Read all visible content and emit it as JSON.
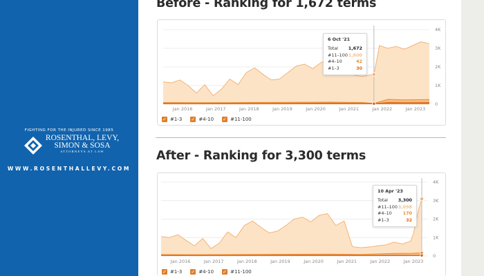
{
  "sidebar": {
    "tagline": "FIGHTING FOR THE INJURED SINCE 1985",
    "firm_line1": "ROSENTHAL, LEVY,",
    "firm_line2": "SIMON & SOSA",
    "firm_line3": "ATTORNEYS AT LAW",
    "website": "WWW.ROSENTHALLEVY.COM",
    "logo_icon": "diamond-logo-icon"
  },
  "colors": {
    "sidebar_blue": "#1163ad",
    "area_light": "#fde3c6",
    "line_light": "#f3b277",
    "series_mid": "#ee8a2c",
    "series_dark": "#d9681e"
  },
  "chart_data": [
    {
      "type": "area",
      "title": "Before - Ranking for 1,672 terms",
      "x_ticks": [
        "Jan 2016",
        "Jan 2017",
        "Jan 2018",
        "Jan 2019",
        "Jan 2020",
        "Jan 2021",
        "Jan 2022",
        "Jan 2023"
      ],
      "y_ticks": [
        "0",
        "1K",
        "2K",
        "3K",
        "4K"
      ],
      "ylim": [
        0,
        4000
      ],
      "xlim": [
        "2015-06",
        "2023-06"
      ],
      "legend": [
        "#1-3",
        "#4-10",
        "#11-100"
      ],
      "legend_placement": "bottom-left",
      "series": [
        {
          "name": "#11-100",
          "x": [
            "2015-06",
            "2015-09",
            "2015-12",
            "2016-03",
            "2016-06",
            "2016-09",
            "2016-12",
            "2017-03",
            "2017-06",
            "2017-09",
            "2017-12",
            "2018-03",
            "2018-06",
            "2018-09",
            "2018-12",
            "2019-03",
            "2019-06",
            "2019-09",
            "2019-12",
            "2020-03",
            "2020-06",
            "2020-09",
            "2020-12",
            "2021-03",
            "2021-06",
            "2021-10",
            "2021-12",
            "2022-03",
            "2022-06",
            "2022-09",
            "2022-12",
            "2023-03",
            "2023-06"
          ],
          "values": [
            1200,
            1150,
            1300,
            1000,
            600,
            1050,
            450,
            800,
            1350,
            1050,
            1700,
            1950,
            1600,
            1300,
            1350,
            1700,
            2050,
            2150,
            1900,
            2250,
            2350,
            1700,
            1950,
            1550,
            1500,
            1600,
            3150,
            3000,
            3100,
            2950,
            3150,
            3350,
            3250
          ]
        },
        {
          "name": "#4-10",
          "x": [
            "2015-06",
            "2016-06",
            "2017-06",
            "2018-06",
            "2019-06",
            "2020-06",
            "2021-06",
            "2021-10",
            "2022-03",
            "2022-09",
            "2023-06"
          ],
          "values": [
            90,
            80,
            85,
            95,
            100,
            110,
            90,
            42,
            260,
            230,
            250
          ]
        },
        {
          "name": "#1-3",
          "x": [
            "2015-06",
            "2016-06",
            "2017-06",
            "2018-06",
            "2019-06",
            "2020-06",
            "2021-06",
            "2021-10",
            "2022-03",
            "2022-09",
            "2023-06"
          ],
          "values": [
            40,
            35,
            40,
            45,
            50,
            55,
            45,
            30,
            90,
            80,
            85
          ]
        }
      ],
      "tooltip": {
        "date": "6 Oct '21",
        "rows": [
          {
            "label": "Total",
            "value": "1,672"
          },
          {
            "label": "#11–100",
            "value": "1,600"
          },
          {
            "label": "#4–10",
            "value": "42"
          },
          {
            "label": "#1–3",
            "value": "30"
          }
        ]
      }
    },
    {
      "type": "area",
      "title": "After - Ranking for 3,300 terms",
      "x_ticks": [
        "Jan 2016",
        "Jan 2017",
        "Jan 2018",
        "Jan 2019",
        "Jan 2020",
        "Jan 2021",
        "Jan 2022",
        "Jan 2023"
      ],
      "y_ticks": [
        "0",
        "1K",
        "2K",
        "3K",
        "4K"
      ],
      "ylim": [
        0,
        4000
      ],
      "xlim": [
        "2015-06",
        "2023-06"
      ],
      "legend": [
        "#1-3",
        "#4-10",
        "#11-100"
      ],
      "legend_placement": "bottom-left",
      "series": [
        {
          "name": "#11-100",
          "x": [
            "2015-06",
            "2015-09",
            "2015-12",
            "2016-03",
            "2016-06",
            "2016-09",
            "2016-12",
            "2017-03",
            "2017-06",
            "2017-09",
            "2017-12",
            "2018-03",
            "2018-06",
            "2018-09",
            "2018-12",
            "2019-03",
            "2019-06",
            "2019-09",
            "2019-12",
            "2020-03",
            "2020-06",
            "2020-09",
            "2020-12",
            "2021-03",
            "2021-06",
            "2021-10",
            "2021-12",
            "2022-03",
            "2022-06",
            "2022-09",
            "2022-12",
            "2023-01",
            "2023-03",
            "2023-04"
          ],
          "values": [
            1050,
            1000,
            1150,
            850,
            550,
            950,
            400,
            700,
            1300,
            1000,
            1650,
            1900,
            1550,
            1250,
            1350,
            1650,
            2000,
            2100,
            1850,
            2200,
            2300,
            1650,
            1900,
            500,
            450,
            500,
            550,
            600,
            750,
            650,
            800,
            1200,
            2600,
            3098
          ]
        },
        {
          "name": "#4-10",
          "x": [
            "2015-06",
            "2016-06",
            "2017-06",
            "2018-06",
            "2019-06",
            "2020-06",
            "2021-06",
            "2022-06",
            "2023-01",
            "2023-04"
          ],
          "values": [
            80,
            75,
            80,
            90,
            95,
            100,
            85,
            140,
            150,
            170
          ]
        },
        {
          "name": "#1-3",
          "x": [
            "2015-06",
            "2016-06",
            "2017-06",
            "2018-06",
            "2019-06",
            "2020-06",
            "2021-06",
            "2022-06",
            "2023-01",
            "2023-04"
          ],
          "values": [
            30,
            28,
            30,
            35,
            40,
            45,
            35,
            40,
            35,
            32
          ]
        }
      ],
      "tooltip": {
        "date": "10 Apr '23",
        "rows": [
          {
            "label": "Total",
            "value": "3,300"
          },
          {
            "label": "#11–100",
            "value": "3,098"
          },
          {
            "label": "#4–10",
            "value": "170"
          },
          {
            "label": "#1–3",
            "value": "32"
          }
        ]
      }
    }
  ]
}
